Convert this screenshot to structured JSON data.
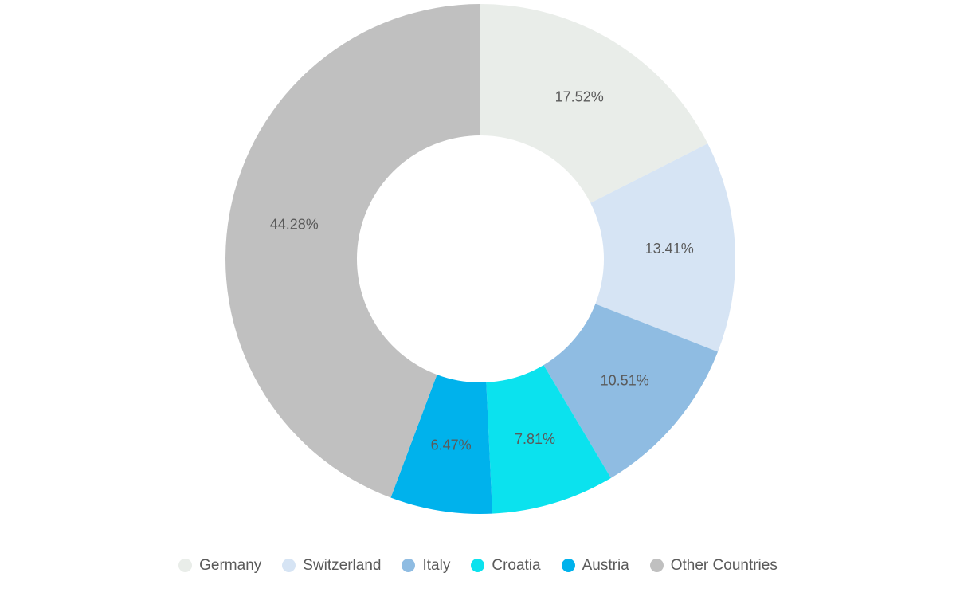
{
  "chart_data": {
    "type": "pie",
    "donut": true,
    "title": "",
    "legend_position": "bottom",
    "label_placement": "inside",
    "start_angle_deg": 0,
    "direction": "clockwise",
    "categories": [
      "Germany",
      "Switzerland",
      "Italy",
      "Croatia",
      "Austria",
      "Other Countries"
    ],
    "values": [
      17.52,
      13.41,
      10.51,
      7.81,
      6.47,
      44.28
    ],
    "series": [
      {
        "name": "Germany",
        "value": 17.52,
        "label": "17.52%",
        "color": "#e9ede9"
      },
      {
        "name": "Switzerland",
        "value": 13.41,
        "label": "13.41%",
        "color": "#d6e4f4"
      },
      {
        "name": "Italy",
        "value": 10.51,
        "label": "10.51%",
        "color": "#8fbce2"
      },
      {
        "name": "Croatia",
        "value": 7.81,
        "label": "7.81%",
        "color": "#0be2ee"
      },
      {
        "name": "Austria",
        "value": 6.47,
        "label": "6.47%",
        "color": "#00b2ec"
      },
      {
        "name": "Other Countries",
        "value": 44.28,
        "label": "44.28%",
        "color": "#c0c0c0"
      }
    ],
    "colors": {
      "label_text": "#5a5a5a",
      "legend_text": "#5a5a5a",
      "background": "#ffffff"
    }
  }
}
